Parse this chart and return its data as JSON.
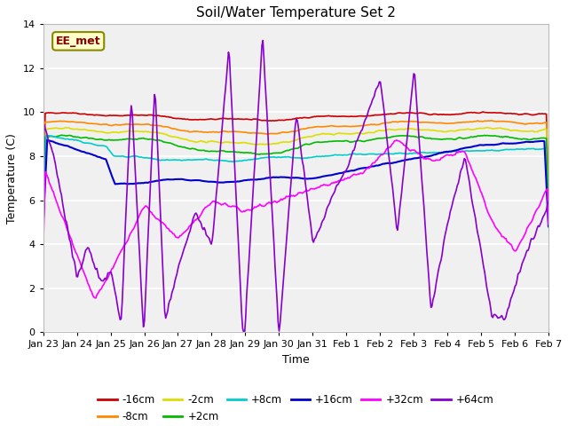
{
  "title": "Soil/Water Temperature Set 2",
  "xlabel": "Time",
  "ylabel": "Temperature (C)",
  "ylim": [
    0,
    14
  ],
  "yticks": [
    0,
    2,
    4,
    6,
    8,
    10,
    12,
    14
  ],
  "fig_facecolor": "#ffffff",
  "plot_facecolor": "#f0f0f0",
  "annotation_text": "EE_met",
  "annotation_bg": "#ffffcc",
  "annotation_border": "#888800",
  "series": {
    "-16cm": {
      "color": "#cc0000",
      "linewidth": 1.2
    },
    "-8cm": {
      "color": "#ff8800",
      "linewidth": 1.2
    },
    "-2cm": {
      "color": "#dddd00",
      "linewidth": 1.2
    },
    "+2cm": {
      "color": "#00bb00",
      "linewidth": 1.2
    },
    "+8cm": {
      "color": "#00cccc",
      "linewidth": 1.2
    },
    "+16cm": {
      "color": "#0000cc",
      "linewidth": 1.5
    },
    "+32cm": {
      "color": "#ff00ff",
      "linewidth": 1.2
    },
    "+64cm": {
      "color": "#8800cc",
      "linewidth": 1.2
    }
  },
  "x_tick_labels": [
    "Jan 23",
    "Jan 24",
    "Jan 25",
    "Jan 26",
    "Jan 27",
    "Jan 28",
    "Jan 29",
    "Jan 30",
    "Jan 31",
    "Feb 1",
    "Feb 2",
    "Feb 3",
    "Feb 4",
    "Feb 5",
    "Feb 6",
    "Feb 7"
  ],
  "legend_row1": [
    "-16cm",
    "-8cm",
    "-2cm",
    "+2cm",
    "+8cm",
    "+16cm"
  ],
  "legend_row2": [
    "+32cm",
    "+64cm"
  ]
}
